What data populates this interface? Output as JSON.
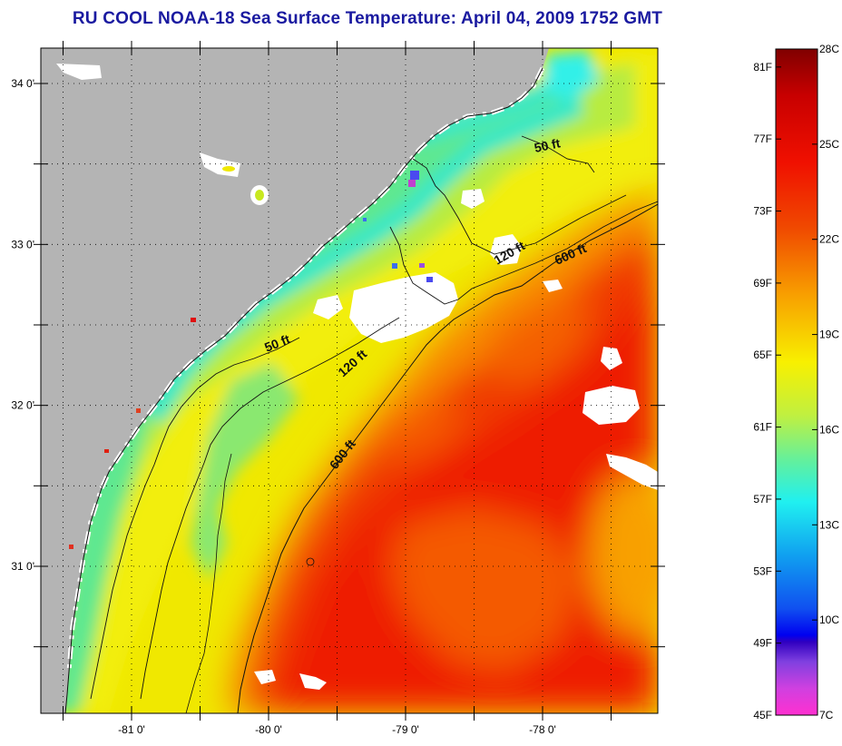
{
  "title": "RU COOL  NOAA-18  Sea Surface Temperature:  April 04, 2009 1752 GMT",
  "map": {
    "lat_labels": [
      {
        "lat": 34.0,
        "label": "34 0'"
      },
      {
        "lat": 33.0,
        "label": "33 0'"
      },
      {
        "lat": 32.0,
        "label": "32 0'"
      },
      {
        "lat": 31.0,
        "label": "31 0'"
      }
    ],
    "lon_labels": [
      {
        "lon": -81.0,
        "label": "-81 0'"
      },
      {
        "lon": -80.0,
        "label": "-80 0'"
      },
      {
        "lon": -79.0,
        "label": "-79 0'"
      },
      {
        "lon": -78.0,
        "label": "-78 0'"
      }
    ],
    "contour_labels": [
      {
        "text": "50 ft",
        "id": "contour-50ft-north"
      },
      {
        "text": "120 ft",
        "id": "contour-120ft-north"
      },
      {
        "text": "600 ft",
        "id": "contour-600ft-north"
      },
      {
        "text": "50 ft",
        "id": "contour-50ft-south"
      },
      {
        "text": "120 ft",
        "id": "contour-120ft-south"
      },
      {
        "text": "600 ft",
        "id": "contour-600ft-south"
      }
    ],
    "colors": {
      "land": "#b4b4b4",
      "cloud": "#ffffff"
    }
  },
  "colorbar": {
    "celsius_labels": [
      "28C",
      "25C",
      "22C",
      "19C",
      "16C",
      "13C",
      "10C",
      "7C"
    ],
    "fahrenheit_labels": [
      "81F",
      "77F",
      "73F",
      "69F",
      "65F",
      "61F",
      "57F",
      "53F",
      "49F",
      "45F"
    ],
    "range_c": [
      7,
      28
    ],
    "range_f": [
      45,
      82
    ]
  }
}
